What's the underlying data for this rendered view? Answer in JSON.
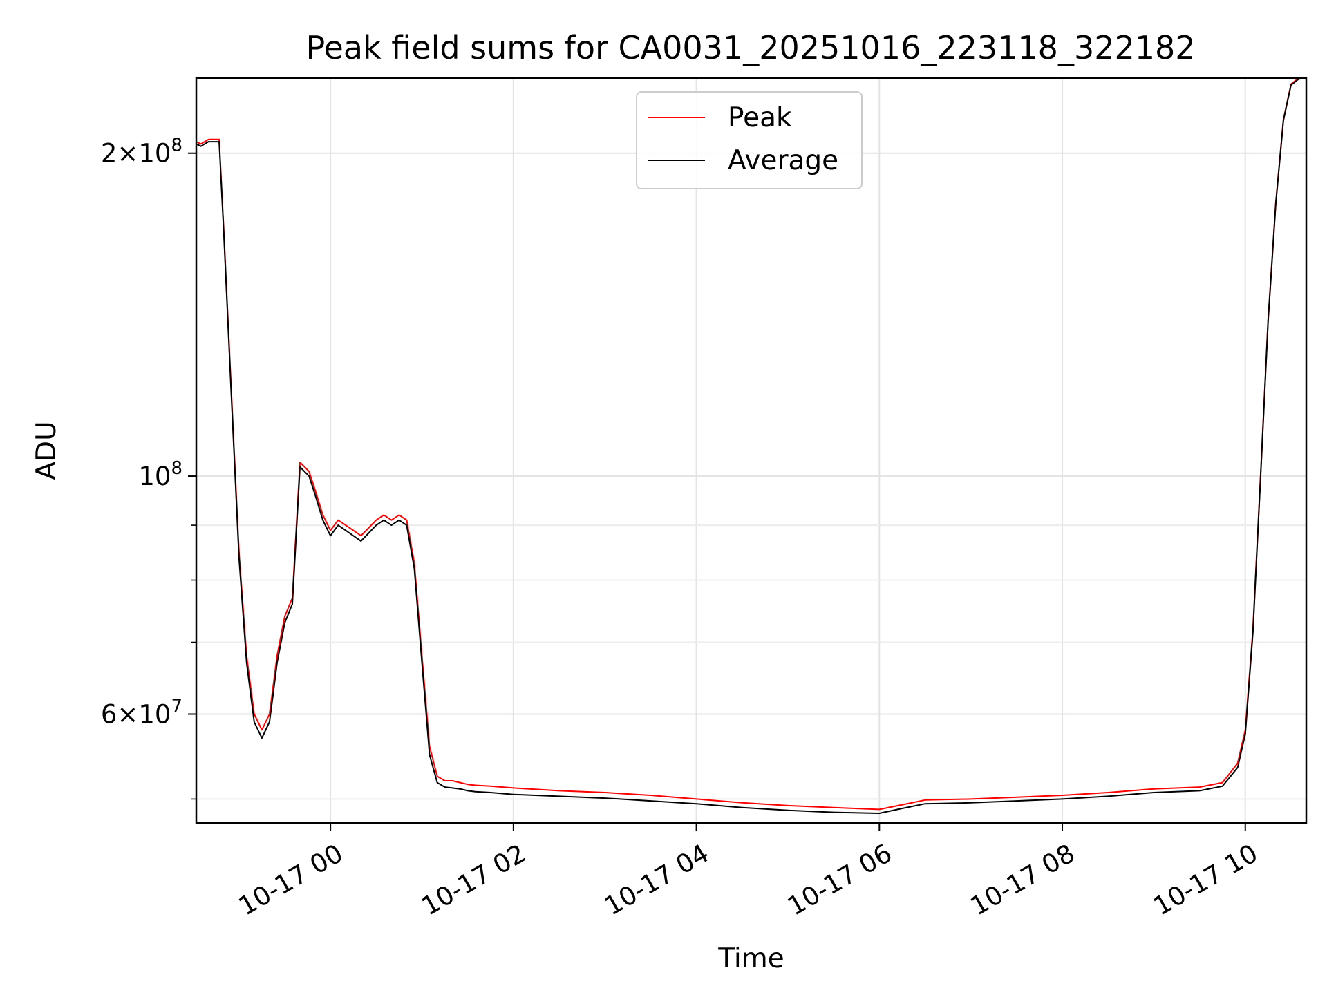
{
  "chart_data": {
    "type": "line",
    "title": "Peak field sums for CA0031_20251016_223118_322182",
    "xlabel": "Time",
    "ylabel": "ADU",
    "y_scale": "log",
    "ylim": [
      47500000,
      235000000
    ],
    "xlim": [
      "2025-10-16 22:32",
      "2025-10-17 10:40"
    ],
    "grid": true,
    "legend_position": "top-center",
    "x_ticks": [
      {
        "t": "2025-10-17 00:00",
        "label": "10-17 00"
      },
      {
        "t": "2025-10-17 02:00",
        "label": "10-17 02"
      },
      {
        "t": "2025-10-17 04:00",
        "label": "10-17 04"
      },
      {
        "t": "2025-10-17 06:00",
        "label": "10-17 06"
      },
      {
        "t": "2025-10-17 08:00",
        "label": "10-17 08"
      },
      {
        "t": "2025-10-17 10:00",
        "label": "10-17 10"
      }
    ],
    "y_ticks": [
      {
        "v": 200000000,
        "mant": "2",
        "exp": "8"
      },
      {
        "v": 100000000,
        "mant": "",
        "exp": "8"
      },
      {
        "v": 60000000,
        "mant": "6",
        "exp": "7"
      }
    ],
    "y_minor_ticks": [
      50000000,
      70000000,
      80000000,
      90000000
    ],
    "series": [
      {
        "name": "Peak",
        "color": "#ff0000",
        "x": [
          "2025-10-16 22:32",
          "2025-10-16 22:35",
          "2025-10-16 22:40",
          "2025-10-16 22:47",
          "2025-10-16 22:50",
          "2025-10-16 22:55",
          "2025-10-16 23:00",
          "2025-10-16 23:05",
          "2025-10-16 23:10",
          "2025-10-16 23:15",
          "2025-10-16 23:20",
          "2025-10-16 23:22",
          "2025-10-16 23:25",
          "2025-10-16 23:30",
          "2025-10-16 23:35",
          "2025-10-16 23:40",
          "2025-10-16 23:43",
          "2025-10-16 23:46",
          "2025-10-16 23:50",
          "2025-10-16 23:55",
          "2025-10-17 00:00",
          "2025-10-17 00:05",
          "2025-10-17 00:10",
          "2025-10-17 00:15",
          "2025-10-17 00:20",
          "2025-10-17 00:30",
          "2025-10-17 00:35",
          "2025-10-17 00:40",
          "2025-10-17 00:45",
          "2025-10-17 00:50",
          "2025-10-17 00:55",
          "2025-10-17 01:00",
          "2025-10-17 01:05",
          "2025-10-17 01:10",
          "2025-10-17 01:15",
          "2025-10-17 01:20",
          "2025-10-17 01:25",
          "2025-10-17 01:30",
          "2025-10-17 01:35",
          "2025-10-17 01:45",
          "2025-10-17 02:00",
          "2025-10-17 02:30",
          "2025-10-17 03:00",
          "2025-10-17 03:30",
          "2025-10-17 04:00",
          "2025-10-17 04:30",
          "2025-10-17 05:00",
          "2025-10-17 05:30",
          "2025-10-17 06:00",
          "2025-10-17 06:15",
          "2025-10-17 06:30",
          "2025-10-17 07:00",
          "2025-10-17 07:30",
          "2025-10-17 08:00",
          "2025-10-17 08:30",
          "2025-10-17 09:00",
          "2025-10-17 09:30",
          "2025-10-17 09:45",
          "2025-10-17 09:55",
          "2025-10-17 10:00",
          "2025-10-17 10:05",
          "2025-10-17 10:10",
          "2025-10-17 10:15",
          "2025-10-17 10:20",
          "2025-10-17 10:25",
          "2025-10-17 10:30",
          "2025-10-17 10:35",
          "2025-10-17 10:40"
        ],
        "y": [
          205000000,
          204000000,
          206000000,
          206000000,
          170000000,
          120000000,
          85000000,
          68000000,
          60000000,
          58000000,
          60000000,
          63000000,
          68000000,
          74000000,
          77000000,
          103000000,
          102000000,
          101000000,
          97000000,
          92000000,
          89000000,
          91000000,
          90000000,
          89000000,
          88000000,
          91000000,
          92000000,
          91000000,
          92000000,
          91000000,
          83000000,
          68000000,
          56000000,
          52500000,
          52000000,
          52000000,
          51800000,
          51600000,
          51500000,
          51400000,
          51200000,
          50900000,
          50700000,
          50400000,
          50000000,
          49600000,
          49300000,
          49100000,
          48900000,
          49400000,
          49900000,
          50000000,
          50200000,
          50400000,
          50700000,
          51100000,
          51300000,
          51800000,
          54000000,
          58000000,
          72000000,
          100000000,
          140000000,
          180000000,
          215000000,
          232000000,
          235000000,
          235000000
        ]
      },
      {
        "name": "Average",
        "color": "#000000",
        "x": [
          "2025-10-16 22:32",
          "2025-10-16 22:35",
          "2025-10-16 22:40",
          "2025-10-16 22:47",
          "2025-10-16 22:50",
          "2025-10-16 22:55",
          "2025-10-16 23:00",
          "2025-10-16 23:05",
          "2025-10-16 23:10",
          "2025-10-16 23:15",
          "2025-10-16 23:20",
          "2025-10-16 23:22",
          "2025-10-16 23:25",
          "2025-10-16 23:30",
          "2025-10-16 23:35",
          "2025-10-16 23:40",
          "2025-10-16 23:43",
          "2025-10-16 23:46",
          "2025-10-16 23:50",
          "2025-10-16 23:55",
          "2025-10-17 00:00",
          "2025-10-17 00:05",
          "2025-10-17 00:10",
          "2025-10-17 00:15",
          "2025-10-17 00:20",
          "2025-10-17 00:30",
          "2025-10-17 00:35",
          "2025-10-17 00:40",
          "2025-10-17 00:45",
          "2025-10-17 00:50",
          "2025-10-17 00:55",
          "2025-10-17 01:00",
          "2025-10-17 01:05",
          "2025-10-17 01:10",
          "2025-10-17 01:15",
          "2025-10-17 01:20",
          "2025-10-17 01:25",
          "2025-10-17 01:30",
          "2025-10-17 01:35",
          "2025-10-17 01:45",
          "2025-10-17 02:00",
          "2025-10-17 02:30",
          "2025-10-17 03:00",
          "2025-10-17 03:30",
          "2025-10-17 04:00",
          "2025-10-17 04:30",
          "2025-10-17 05:00",
          "2025-10-17 05:30",
          "2025-10-17 06:00",
          "2025-10-17 06:15",
          "2025-10-17 06:30",
          "2025-10-17 07:00",
          "2025-10-17 07:30",
          "2025-10-17 08:00",
          "2025-10-17 08:30",
          "2025-10-17 09:00",
          "2025-10-17 09:30",
          "2025-10-17 09:45",
          "2025-10-17 09:55",
          "2025-10-17 10:00",
          "2025-10-17 10:05",
          "2025-10-17 10:10",
          "2025-10-17 10:15",
          "2025-10-17 10:20",
          "2025-10-17 10:25",
          "2025-10-17 10:30",
          "2025-10-17 10:35",
          "2025-10-17 10:40"
        ],
        "y": [
          204000000,
          203000000,
          205000000,
          205000000,
          169000000,
          119000000,
          84000000,
          67000000,
          59000000,
          57000000,
          59000000,
          62000000,
          67000000,
          73000000,
          76000000,
          102000000,
          101000000,
          100000000,
          96000000,
          91000000,
          88000000,
          90000000,
          89000000,
          88000000,
          87000000,
          90000000,
          91000000,
          90000000,
          91000000,
          90000000,
          82000000,
          67000000,
          55000000,
          51800000,
          51300000,
          51200000,
          51100000,
          50900000,
          50800000,
          50700000,
          50500000,
          50300000,
          50100000,
          49800000,
          49500000,
          49100000,
          48800000,
          48600000,
          48500000,
          49000000,
          49500000,
          49600000,
          49800000,
          50000000,
          50300000,
          50700000,
          50900000,
          51400000,
          53500000,
          57500000,
          71500000,
          99500000,
          139500000,
          179500000,
          214500000,
          231500000,
          234500000,
          235000000
        ]
      }
    ]
  }
}
